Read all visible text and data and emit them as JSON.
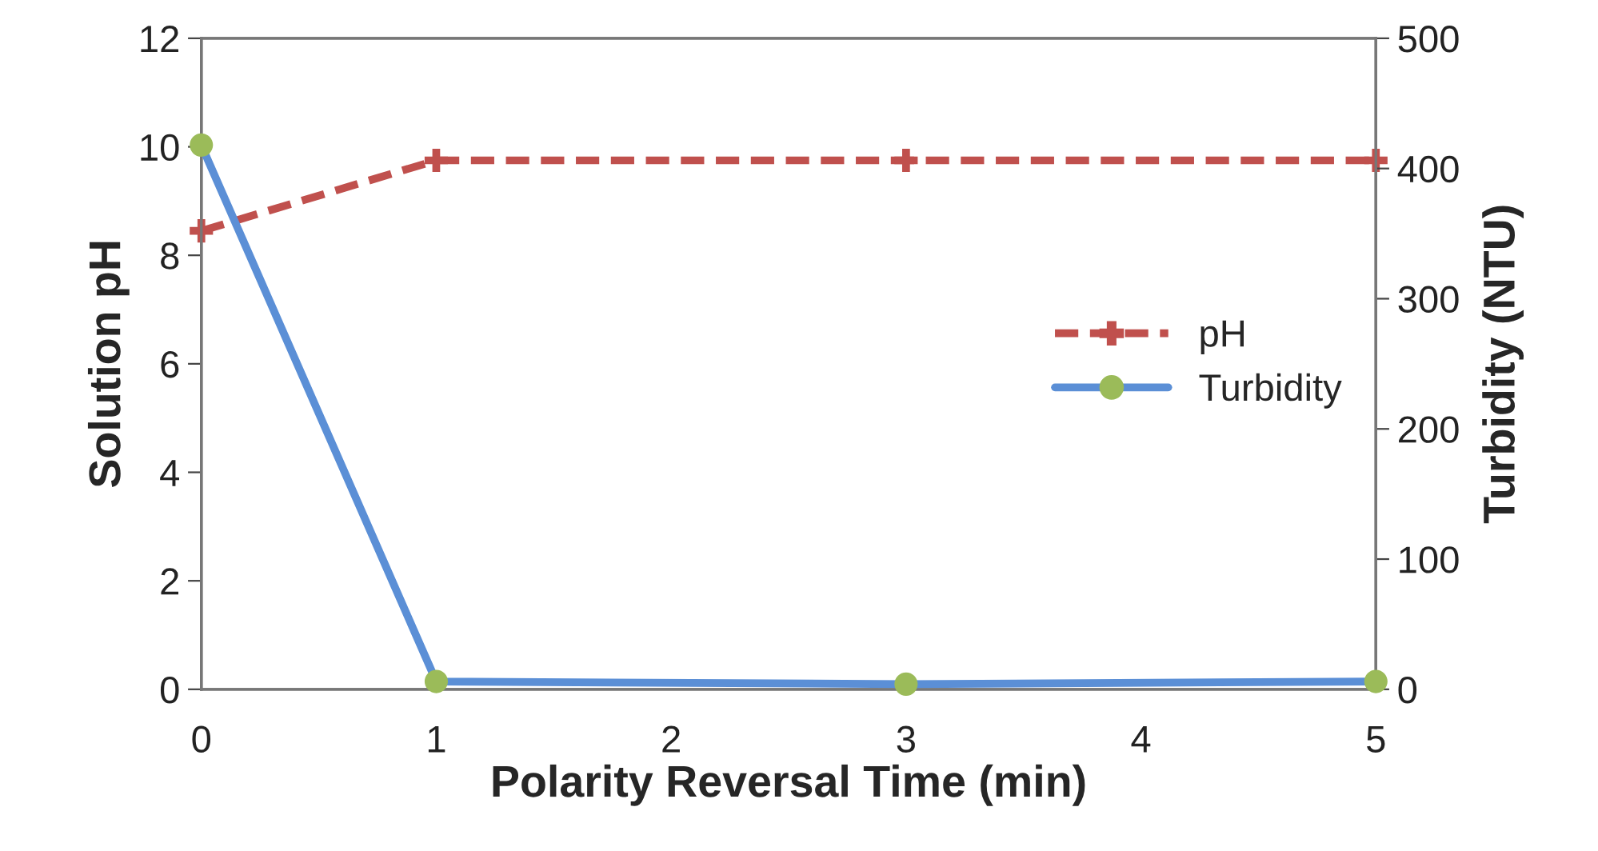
{
  "chart_data": {
    "type": "line",
    "xlabel": "Polarity Reversal Time (min)",
    "ylabel": "Solution pH",
    "y2label": "Turbidity (NTU)",
    "x": [
      0,
      1,
      3,
      5
    ],
    "series": [
      {
        "name": "pH",
        "color": "#c0504d",
        "values": [
          8.45,
          9.75,
          9.75,
          9.75
        ],
        "marker": "cross",
        "line_style": "dashed"
      },
      {
        "name": "Turbidity",
        "color": "#5b8fd6",
        "colors": [
          "#9bbb59",
          "#9bbb59",
          "#9bbb59",
          "#9bbb59"
        ],
        "values": [
          418,
          6,
          4,
          6
        ],
        "axis": "y2",
        "marker": "circle",
        "line_style": "solid"
      }
    ],
    "xlim": [
      0,
      5
    ],
    "xticks": [
      0,
      1,
      2,
      3,
      4,
      5
    ],
    "ylim": [
      0,
      12
    ],
    "yticks": [
      0,
      2,
      4,
      6,
      8,
      10,
      12
    ],
    "y2lim": [
      0,
      500
    ],
    "y2ticks": [
      0,
      100,
      200,
      300,
      400,
      500
    ],
    "grid": false,
    "legend": "center right"
  }
}
